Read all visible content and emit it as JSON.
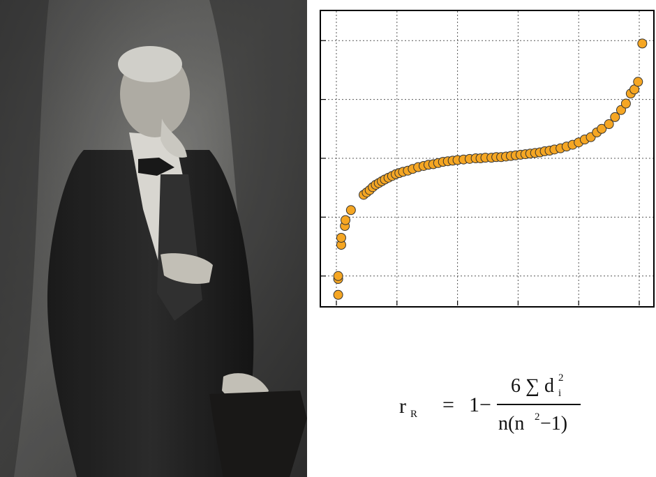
{
  "photo": {
    "subject": "portrait-of-elderly-man-standing",
    "tone": "sepia-grayscale"
  },
  "chart_data": {
    "type": "scatter",
    "title": "",
    "xlabel": "",
    "ylabel": "",
    "grid": true,
    "xlim": [
      0,
      5
    ],
    "ylim": [
      -2.5,
      2.5
    ],
    "marker_color": "#f5a623",
    "marker_edge_color": "#333333",
    "points": [
      [
        0.03,
        -2.32
      ],
      [
        0.03,
        -2.05
      ],
      [
        0.03,
        -2.0
      ],
      [
        0.08,
        -1.47
      ],
      [
        0.08,
        -1.35
      ],
      [
        0.14,
        -1.15
      ],
      [
        0.15,
        -1.05
      ],
      [
        0.24,
        -0.88
      ],
      [
        0.45,
        -0.62
      ],
      [
        0.5,
        -0.58
      ],
      [
        0.55,
        -0.54
      ],
      [
        0.6,
        -0.49
      ],
      [
        0.65,
        -0.45
      ],
      [
        0.7,
        -0.42
      ],
      [
        0.75,
        -0.39
      ],
      [
        0.8,
        -0.36
      ],
      [
        0.86,
        -0.33
      ],
      [
        0.92,
        -0.3
      ],
      [
        0.98,
        -0.27
      ],
      [
        1.04,
        -0.25
      ],
      [
        1.1,
        -0.23
      ],
      [
        1.18,
        -0.21
      ],
      [
        1.26,
        -0.18
      ],
      [
        1.35,
        -0.15
      ],
      [
        1.44,
        -0.13
      ],
      [
        1.52,
        -0.11
      ],
      [
        1.6,
        -0.1
      ],
      [
        1.68,
        -0.08
      ],
      [
        1.76,
        -0.06
      ],
      [
        1.84,
        -0.05
      ],
      [
        1.92,
        -0.04
      ],
      [
        2.0,
        -0.03
      ],
      [
        2.1,
        -0.02
      ],
      [
        2.2,
        -0.01
      ],
      [
        2.3,
        0.0
      ],
      [
        2.38,
        0.0
      ],
      [
        2.46,
        0.01
      ],
      [
        2.56,
        0.01
      ],
      [
        2.64,
        0.02
      ],
      [
        2.72,
        0.02
      ],
      [
        2.8,
        0.03
      ],
      [
        2.88,
        0.04
      ],
      [
        2.96,
        0.05
      ],
      [
        3.04,
        0.06
      ],
      [
        3.12,
        0.07
      ],
      [
        3.2,
        0.08
      ],
      [
        3.28,
        0.09
      ],
      [
        3.36,
        0.1
      ],
      [
        3.44,
        0.12
      ],
      [
        3.52,
        0.13
      ],
      [
        3.6,
        0.15
      ],
      [
        3.7,
        0.17
      ],
      [
        3.8,
        0.2
      ],
      [
        3.9,
        0.23
      ],
      [
        4.0,
        0.27
      ],
      [
        4.1,
        0.32
      ],
      [
        4.2,
        0.36
      ],
      [
        4.3,
        0.44
      ],
      [
        4.38,
        0.5
      ],
      [
        4.5,
        0.58
      ],
      [
        4.6,
        0.7
      ],
      [
        4.7,
        0.82
      ],
      [
        4.78,
        0.93
      ],
      [
        4.86,
        1.1
      ],
      [
        4.92,
        1.17
      ],
      [
        4.98,
        1.3
      ],
      [
        5.05,
        1.95
      ]
    ]
  },
  "formula": {
    "lhs_main": "r",
    "lhs_sub": "R",
    "equals": "=",
    "one_minus": "1−",
    "numerator": "6 ∑ d",
    "numerator_sub": "i",
    "numerator_sup": "2",
    "denominator_a": "n(n",
    "denominator_sup": "2",
    "denominator_b": " −1)"
  }
}
